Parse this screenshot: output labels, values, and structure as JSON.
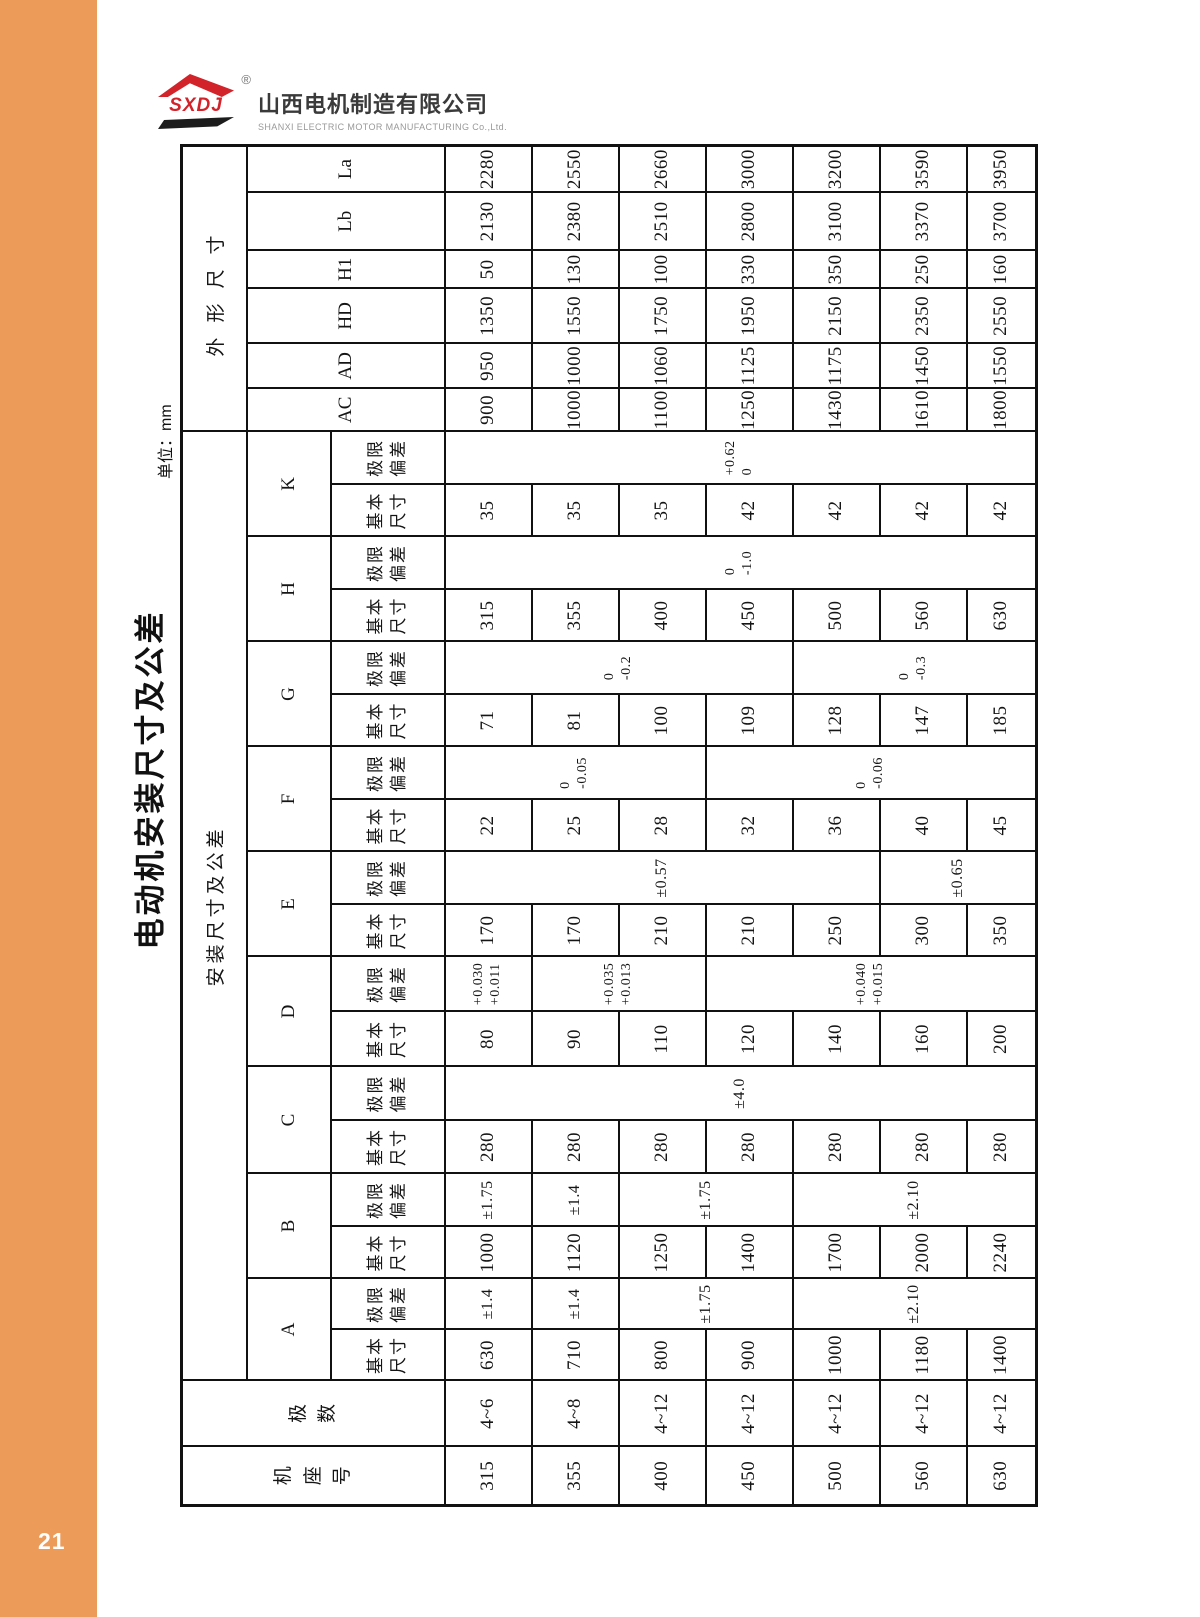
{
  "page_number": "21",
  "accent_orange": "#EC9B58",
  "logo": {
    "mark_text": "SXDJ",
    "registered": "®",
    "company_cn": "山西电机制造有限公司",
    "company_en": "SHANXI ELECTRIC MOTOR MANUFACTURING Co.,Ltd.",
    "brand_red": "#D2232A",
    "mark_black": "#1C1C1C"
  },
  "title": "电动机安装尺寸及公差",
  "unit_label": "单位：mm",
  "table": {
    "corner": {
      "frame": [
        "机",
        "座",
        "号"
      ],
      "poles": [
        "极",
        "数"
      ]
    },
    "groups": {
      "install": "安装尺寸及公差",
      "outline": "外形尺寸"
    },
    "sub": {
      "basic": [
        "基本",
        "尺寸"
      ],
      "dev": [
        "极限",
        "偏差"
      ]
    },
    "install_letters": [
      "A",
      "B",
      "C",
      "D",
      "E",
      "F",
      "G",
      "H",
      "K"
    ],
    "outline_letters": [
      "AC",
      "AD",
      "HD",
      "H1",
      "Lb",
      "La"
    ],
    "frames": [
      "315",
      "355",
      "400",
      "450",
      "500",
      "560",
      "630"
    ],
    "poles": [
      "4~6",
      "4~8",
      "4~12",
      "4~12",
      "4~12",
      "4~12",
      "4~12"
    ],
    "basic": {
      "A": [
        "630",
        "710",
        "800",
        "900",
        "1000",
        "1180",
        "1400"
      ],
      "B": [
        "1000",
        "1120",
        "1250",
        "1400",
        "1700",
        "2000",
        "2240"
      ],
      "C": [
        "280",
        "280",
        "280",
        "280",
        "280",
        "280",
        "280"
      ],
      "D": [
        "80",
        "90",
        "110",
        "120",
        "140",
        "160",
        "200"
      ],
      "E": [
        "170",
        "170",
        "210",
        "210",
        "250",
        "300",
        "350"
      ],
      "F": [
        "22",
        "25",
        "28",
        "32",
        "36",
        "40",
        "45"
      ],
      "G": [
        "71",
        "81",
        "100",
        "109",
        "128",
        "147",
        "185"
      ],
      "H": [
        "315",
        "355",
        "400",
        "450",
        "500",
        "560",
        "630"
      ],
      "K": [
        "35",
        "35",
        "35",
        "42",
        "42",
        "42",
        "42"
      ]
    },
    "tol": {
      "A": [
        {
          "row": 0,
          "span": 1,
          "text": "±1.4"
        },
        {
          "row": 1,
          "span": 1,
          "text": "±1.4"
        },
        {
          "row": 2,
          "span": 2,
          "text": "±1.75"
        },
        {
          "row": 4,
          "span": 3,
          "text": "±2.10"
        }
      ],
      "B": [
        {
          "row": 0,
          "span": 1,
          "text": "±1.75"
        },
        {
          "row": 1,
          "span": 1,
          "text": "±1.4"
        },
        {
          "row": 2,
          "span": 2,
          "text": "±1.75"
        },
        {
          "row": 4,
          "span": 3,
          "text": "±2.10"
        }
      ],
      "C": [
        {
          "row": 0,
          "span": 7,
          "text": "±4.0"
        }
      ],
      "D": [
        {
          "row": 0,
          "span": 1,
          "upper": "+0.030",
          "lower": "+0.011"
        },
        {
          "row": 1,
          "span": 2,
          "upper": "+0.035",
          "lower": "+0.013"
        },
        {
          "row": 3,
          "span": 4,
          "upper": "+0.040",
          "lower": "+0.015"
        }
      ],
      "E": [
        {
          "row": 0,
          "span": 5,
          "text": "±0.57"
        },
        {
          "row": 5,
          "span": 2,
          "text": "±0.65"
        }
      ],
      "F": [
        {
          "row": 0,
          "span": 3,
          "upper": "0",
          "lower": "-0.05"
        },
        {
          "row": 3,
          "span": 4,
          "upper": "0",
          "lower": "-0.06"
        }
      ],
      "G": [
        {
          "row": 0,
          "span": 4,
          "upper": "0",
          "lower": "-0.2"
        },
        {
          "row": 4,
          "span": 3,
          "upper": "0",
          "lower": "-0.3"
        }
      ],
      "H": [
        {
          "row": 0,
          "span": 7,
          "upper": "0",
          "lower": "-1.0"
        }
      ],
      "K": [
        {
          "row": 0,
          "span": 7,
          "upper": "+0.62",
          "lower": "0"
        }
      ]
    },
    "outline": {
      "AC": [
        "900",
        "1000",
        "1100",
        "1250",
        "1430",
        "1610",
        "1800"
      ],
      "AD": [
        "950",
        "1000",
        "1060",
        "1125",
        "1175",
        "1450",
        "1550"
      ],
      "HD": [
        "1350",
        "1550",
        "1750",
        "1950",
        "2150",
        "2350",
        "2550"
      ],
      "H1": [
        "50",
        "130",
        "100",
        "330",
        "350",
        "250",
        "160"
      ],
      "Lb": [
        "2130",
        "2380",
        "2510",
        "2800",
        "3100",
        "3370",
        "3700"
      ],
      "La": [
        "2280",
        "2550",
        "2660",
        "3000",
        "3200",
        "3590",
        "3950"
      ]
    }
  }
}
